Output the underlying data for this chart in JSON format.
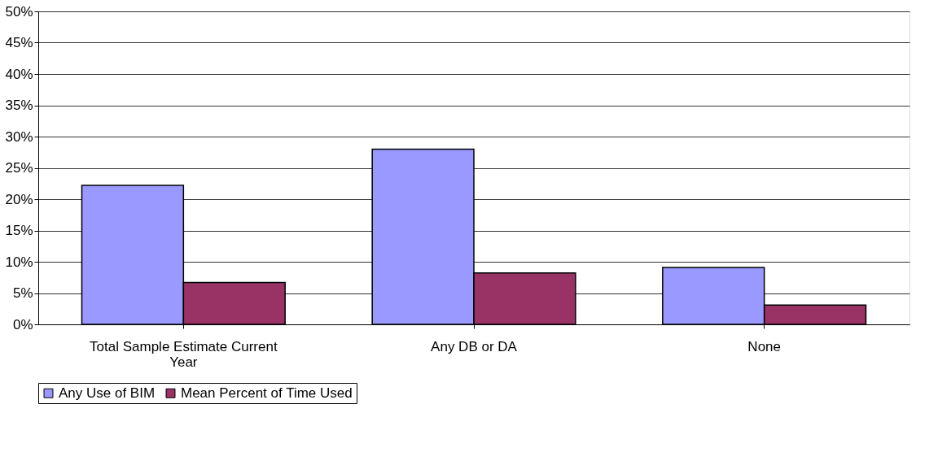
{
  "chart_data": {
    "type": "bar",
    "categories": [
      "Total Sample Estimate Current Year",
      "Any DB or DA",
      "None"
    ],
    "series": [
      {
        "name": "Any Use of BIM",
        "color": "#9999ff",
        "values": [
          22.2,
          28.0,
          9.1
        ]
      },
      {
        "name": "Mean Percent of Time Used",
        "color": "#993366",
        "values": [
          6.7,
          8.2,
          3.1
        ]
      }
    ],
    "ylim": [
      0,
      50
    ],
    "yticks": [
      {
        "value": 0,
        "label": "0%"
      },
      {
        "value": 5,
        "label": "5%"
      },
      {
        "value": 10,
        "label": "10%"
      },
      {
        "value": 15,
        "label": "15%"
      },
      {
        "value": 20,
        "label": "20%"
      },
      {
        "value": 25,
        "label": "25%"
      },
      {
        "value": 30,
        "label": "30%"
      },
      {
        "value": 35,
        "label": "35%"
      },
      {
        "value": 40,
        "label": "40%"
      },
      {
        "value": 45,
        "label": "45%"
      },
      {
        "value": 50,
        "label": "50%"
      }
    ],
    "grid": "y",
    "legend": "bottom"
  }
}
